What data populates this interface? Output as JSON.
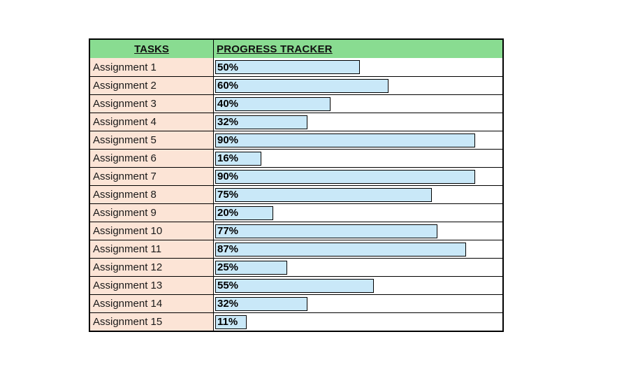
{
  "table": {
    "headers": [
      "TASKS",
      "PROGRESS TRACKER"
    ],
    "rows": [
      {
        "task": "Assignment 1",
        "progress_label": "50%",
        "value": 50
      },
      {
        "task": "Assignment 2",
        "progress_label": "60%",
        "value": 60
      },
      {
        "task": "Assignment 3",
        "progress_label": "40%",
        "value": 40
      },
      {
        "task": "Assignment 4",
        "progress_label": "32%",
        "value": 32
      },
      {
        "task": "Assignment 5",
        "progress_label": "90%",
        "value": 90
      },
      {
        "task": "Assignment 6",
        "progress_label": "16%",
        "value": 16
      },
      {
        "task": "Assignment 7",
        "progress_label": "90%",
        "value": 90
      },
      {
        "task": "Assignment 8",
        "progress_label": "75%",
        "value": 75
      },
      {
        "task": "Assignment 9",
        "progress_label": "20%",
        "value": 20
      },
      {
        "task": "Assignment 10",
        "progress_label": "77%",
        "value": 77
      },
      {
        "task": "Assignment 11",
        "progress_label": "87%",
        "value": 87
      },
      {
        "task": "Assignment 12",
        "progress_label": "25%",
        "value": 25
      },
      {
        "task": "Assignment 13",
        "progress_label": "55%",
        "value": 55
      },
      {
        "task": "Assignment 14",
        "progress_label": "32%",
        "value": 32
      },
      {
        "task": "Assignment 15",
        "progress_label": "11%",
        "value": 11
      }
    ]
  },
  "colors": {
    "header_bg": "#89DC91",
    "task_bg": "#FCE4D6",
    "bar_fill": "#C9E8F8",
    "border": "#000000"
  },
  "chart_data": {
    "type": "bar",
    "orientation": "horizontal",
    "title": "PROGRESS TRACKER",
    "categories": [
      "Assignment 1",
      "Assignment 2",
      "Assignment 3",
      "Assignment 4",
      "Assignment 5",
      "Assignment 6",
      "Assignment 7",
      "Assignment 8",
      "Assignment 9",
      "Assignment 10",
      "Assignment 11",
      "Assignment 12",
      "Assignment 13",
      "Assignment 14",
      "Assignment 15"
    ],
    "values": [
      50,
      60,
      40,
      32,
      90,
      16,
      90,
      75,
      20,
      77,
      87,
      25,
      55,
      32,
      11
    ],
    "value_unit": "%",
    "xlabel": "",
    "ylabel": "",
    "xlim": [
      0,
      100
    ],
    "grid": false,
    "legend": false,
    "data_labels": "inside-left"
  }
}
